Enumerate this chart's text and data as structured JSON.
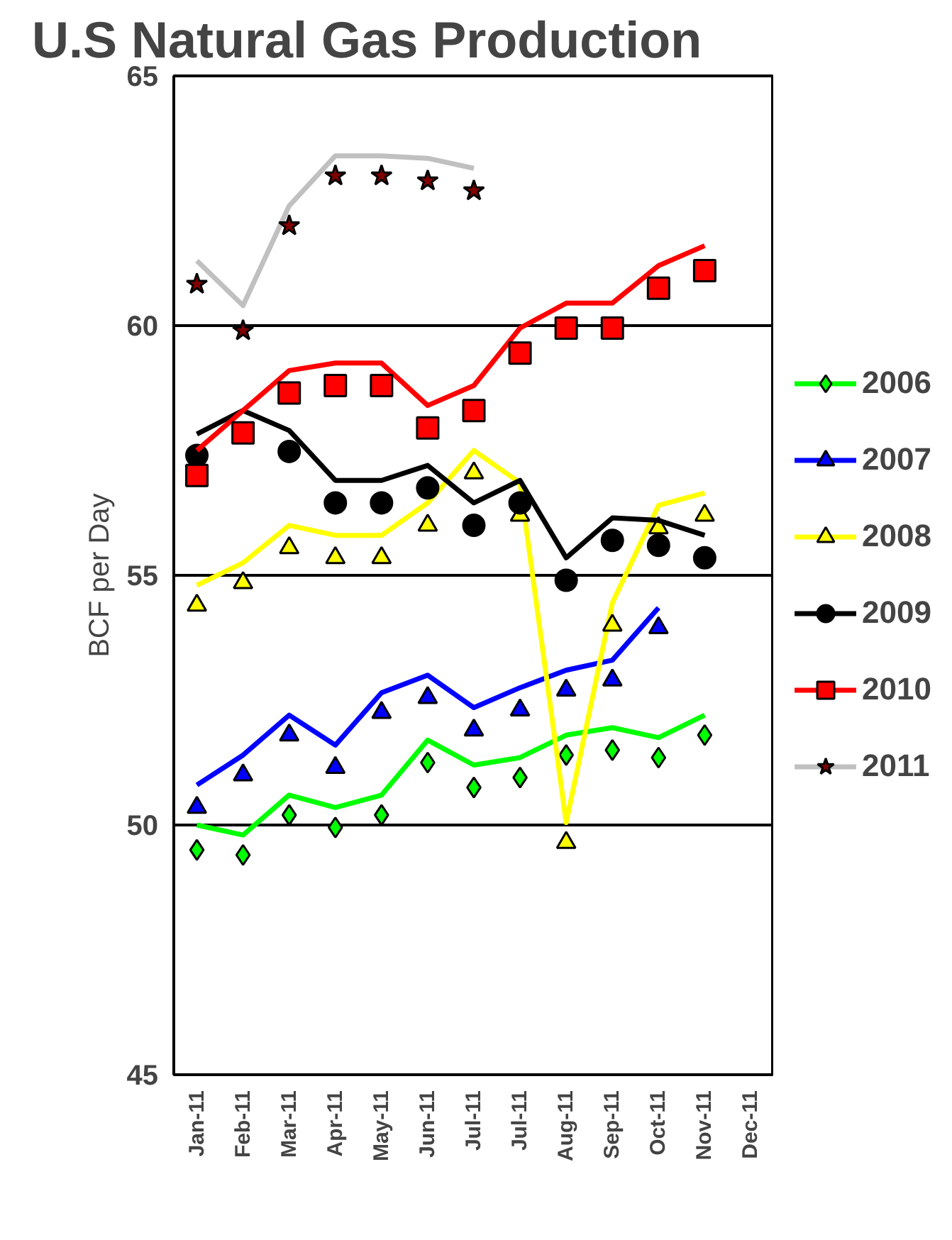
{
  "chart_data": {
    "type": "line",
    "title": "U.S Natural Gas Production",
    "ylabel": "BCF per Day",
    "categories": [
      "Jan-11",
      "Feb-11",
      "Mar-11",
      "Apr-11",
      "May-11",
      "Jun-11",
      "Jul-11",
      "Jul-11",
      "Aug-11",
      "Sep-11",
      "Oct-11",
      "Nov-11",
      "Dec-11"
    ],
    "ylim": [
      45,
      65
    ],
    "yticks": [
      45,
      50,
      55,
      60,
      65
    ],
    "grid": "y",
    "legend": "right",
    "series": [
      {
        "name": "2006",
        "color": "#00ff00",
        "values": [
          50.0,
          49.8,
          50.6,
          50.35,
          50.6,
          51.7,
          51.2,
          51.35,
          51.8,
          51.95,
          51.75,
          52.2,
          null
        ]
      },
      {
        "type": "scatter",
        "marker": "diamond",
        "color": "#00ff00",
        "values": [
          49.5,
          49.4,
          50.2,
          49.95,
          50.2,
          51.25,
          50.75,
          50.95,
          51.4,
          51.5,
          51.35,
          51.8,
          null
        ]
      },
      {
        "name": "2007",
        "color": "#0000ff",
        "values": [
          50.8,
          51.4,
          52.2,
          51.6,
          52.65,
          53.0,
          52.35,
          52.75,
          53.1,
          53.3,
          54.35,
          null,
          null
        ]
      },
      {
        "type": "scatter",
        "marker": "triangle",
        "color": "#0000ff",
        "values": [
          50.35,
          51.0,
          51.8,
          51.15,
          52.25,
          52.55,
          51.9,
          52.3,
          52.7,
          52.9,
          53.95,
          null,
          null
        ]
      },
      {
        "name": "2008",
        "color": "#ffff00",
        "values": [
          54.8,
          55.25,
          56.0,
          55.8,
          55.8,
          56.45,
          57.5,
          56.85,
          50.05,
          54.45,
          56.4,
          56.65,
          null
        ]
      },
      {
        "type": "scatter",
        "marker": "triangle",
        "color": "#ffff00",
        "values": [
          54.4,
          54.85,
          55.55,
          55.35,
          55.35,
          56.0,
          57.05,
          56.2,
          49.65,
          54.0,
          55.95,
          56.2,
          null
        ]
      },
      {
        "name": "2009",
        "color": "#000000",
        "values": [
          57.83,
          58.3,
          57.9,
          56.9,
          56.9,
          57.2,
          56.45,
          56.9,
          55.35,
          56.15,
          56.1,
          55.8,
          null
        ]
      },
      {
        "type": "scatter",
        "marker": "circle",
        "color": "#000000",
        "values": [
          57.4,
          null,
          57.48,
          56.45,
          56.45,
          56.75,
          56.0,
          56.45,
          54.9,
          55.7,
          55.6,
          55.35,
          null
        ]
      },
      {
        "name": "2010",
        "color": "#ff0000",
        "values": [
          57.5,
          58.3,
          59.1,
          59.25,
          59.25,
          58.4,
          58.8,
          59.95,
          60.45,
          60.45,
          61.2,
          61.6,
          null
        ]
      },
      {
        "type": "scatter",
        "marker": "square",
        "color": "#ff0000",
        "values": [
          57.0,
          57.85,
          58.65,
          58.8,
          58.8,
          57.95,
          58.3,
          59.45,
          59.95,
          59.95,
          60.75,
          61.1,
          null
        ]
      },
      {
        "name": "2011",
        "color": "#c0c0c0",
        "values": [
          61.3,
          60.4,
          62.4,
          63.4,
          63.4,
          63.35,
          63.15,
          null,
          null,
          null,
          null,
          null,
          null
        ]
      },
      {
        "type": "scatter",
        "marker": "star",
        "color": "#800000",
        "values": [
          60.83,
          59.9,
          62.0,
          63.0,
          63.0,
          62.9,
          62.7,
          null,
          null,
          null,
          null,
          null,
          null
        ]
      }
    ]
  }
}
